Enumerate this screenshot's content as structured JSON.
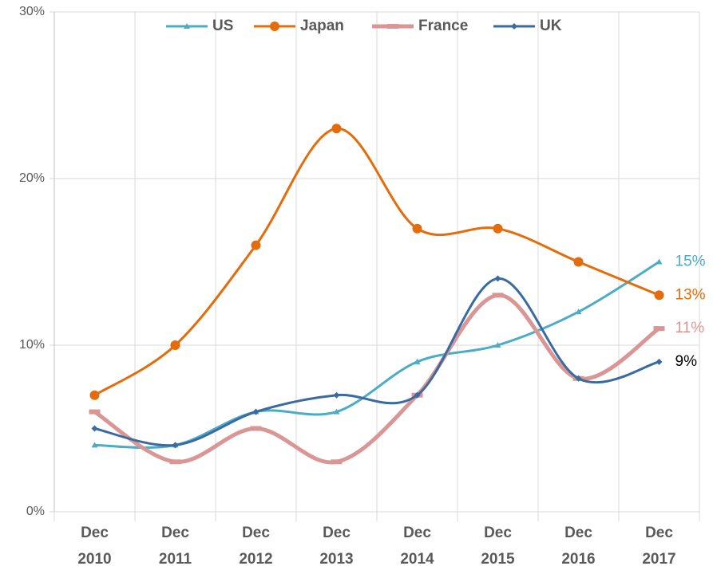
{
  "chart_data": {
    "type": "line",
    "categories": [
      "Dec 2010",
      "Dec 2011",
      "Dec 2012",
      "Dec 2013",
      "Dec 2014",
      "Dec 2015",
      "Dec 2016",
      "Dec 2017"
    ],
    "series": [
      {
        "name": "US",
        "color": "#4bacc6",
        "marker": "triangle",
        "values": [
          4,
          4,
          6,
          6,
          9,
          10,
          12,
          15
        ],
        "value_labels": [
          null,
          null,
          null,
          null,
          null,
          null,
          null,
          "15%"
        ]
      },
      {
        "name": "Japan",
        "color": "#e46c0a",
        "marker": "circle",
        "values": [
          7,
          10,
          16,
          23,
          17,
          17,
          15,
          13
        ],
        "value_labels": [
          null,
          null,
          null,
          null,
          null,
          null,
          null,
          "13%"
        ]
      },
      {
        "name": "France",
        "color": "#d99694",
        "marker": "square",
        "values": [
          6,
          3,
          5,
          3,
          7,
          13,
          8,
          11
        ],
        "value_labels": [
          null,
          null,
          null,
          null,
          null,
          null,
          null,
          "11%"
        ]
      },
      {
        "name": "UK",
        "color": "#3a6aa0",
        "marker": "diamond",
        "label_color": "#000000",
        "values": [
          5,
          4,
          6,
          7,
          7,
          14,
          8,
          9
        ],
        "value_labels": [
          null,
          null,
          null,
          null,
          null,
          null,
          null,
          "9%"
        ]
      }
    ],
    "ylim": [
      0,
      30
    ],
    "yticks": [
      {
        "value": 0,
        "label": "0%"
      },
      {
        "value": 10,
        "label": "10%"
      },
      {
        "value": 20,
        "label": "20%"
      },
      {
        "value": 30,
        "label": "30%"
      }
    ],
    "grid": true,
    "legend": "top",
    "smooth": true
  }
}
